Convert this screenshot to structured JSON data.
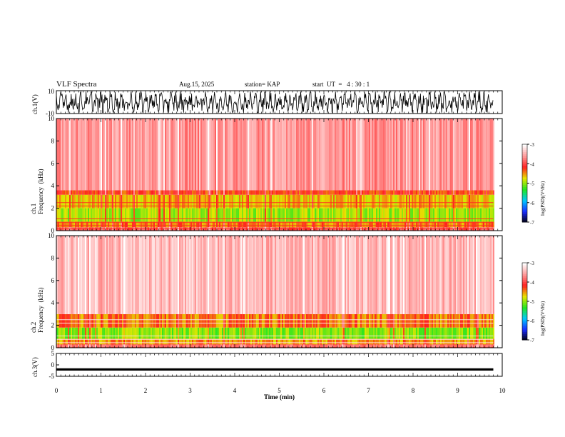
{
  "header": {
    "title": "VLF Spectra",
    "date": "Aug.15, 2025",
    "station": "station= KAP",
    "start": "start  UT  =   4 : 30 : 1"
  },
  "colorbar": {
    "label": "log(PSD)(V²/Hz)",
    "ticks": [
      "-3",
      "-4",
      "-5",
      "-6",
      "-7"
    ],
    "stops": [
      "#000000",
      "#1a2aff",
      "#00c8ff",
      "#22e622",
      "#e6e600",
      "#ff2020",
      "#ff9a9a",
      "#ffffff"
    ]
  },
  "chart_data": [
    {
      "type": "line",
      "name": "ch1-waveform",
      "ylabel": "ch.1(V)",
      "ylim": [
        -10,
        10
      ],
      "yticks": [
        "10",
        "-10"
      ],
      "xlim": [
        0,
        10
      ],
      "description_values": "dense oscillating signal between about -9 and 9 V over 0 to 9.8 min"
    },
    {
      "type": "heatmap",
      "name": "ch1-spectrogram",
      "ylabel": "ch.1\nFrequency  (kHz)",
      "ylim": [
        0,
        10
      ],
      "yticks": [
        "0",
        "2",
        "4",
        "6",
        "8",
        "10"
      ],
      "xlim": [
        0,
        10
      ],
      "data_extent_min": 9.8,
      "bands": [
        {
          "from": 0,
          "to": 0.3,
          "level": -3.9
        },
        {
          "from": 0.3,
          "to": 0.8,
          "level": -4.4
        },
        {
          "from": 0.8,
          "to": 2.0,
          "level": -4.9
        },
        {
          "from": 2.0,
          "to": 3.2,
          "level": -4.6
        },
        {
          "from": 3.2,
          "to": 3.6,
          "level": -4.2
        },
        {
          "from": 3.6,
          "to": 10,
          "level": -3.6
        }
      ]
    },
    {
      "type": "heatmap",
      "name": "ch2-spectrogram",
      "ylabel": "ch.2\nFrequency  (kHz)",
      "ylim": [
        0,
        10
      ],
      "yticks": [
        "0",
        "2",
        "4",
        "6",
        "8",
        "10"
      ],
      "xlim": [
        0,
        10
      ],
      "data_extent_min": 9.8,
      "bands": [
        {
          "from": 0,
          "to": 0.3,
          "level": -4.0
        },
        {
          "from": 0.3,
          "to": 0.8,
          "level": -4.5
        },
        {
          "from": 0.8,
          "to": 1.8,
          "level": -5.0
        },
        {
          "from": 1.8,
          "to": 3.0,
          "level": -4.4
        },
        {
          "from": 3.0,
          "to": 10,
          "level": -3.4
        }
      ]
    },
    {
      "type": "line",
      "name": "ch3-waveform",
      "ylabel": "ch.3(V)",
      "ylim": [
        -5,
        5
      ],
      "yticks": [
        "5",
        "0",
        "-5"
      ],
      "xlim": [
        0,
        10
      ],
      "description_values": "thick band near -2 V from 0 to 9.8 min"
    }
  ],
  "xaxis": {
    "label": "Time  (min)",
    "ticks": [
      "0",
      "1",
      "2",
      "3",
      "4",
      "5",
      "6",
      "7",
      "8",
      "9",
      "10"
    ]
  }
}
